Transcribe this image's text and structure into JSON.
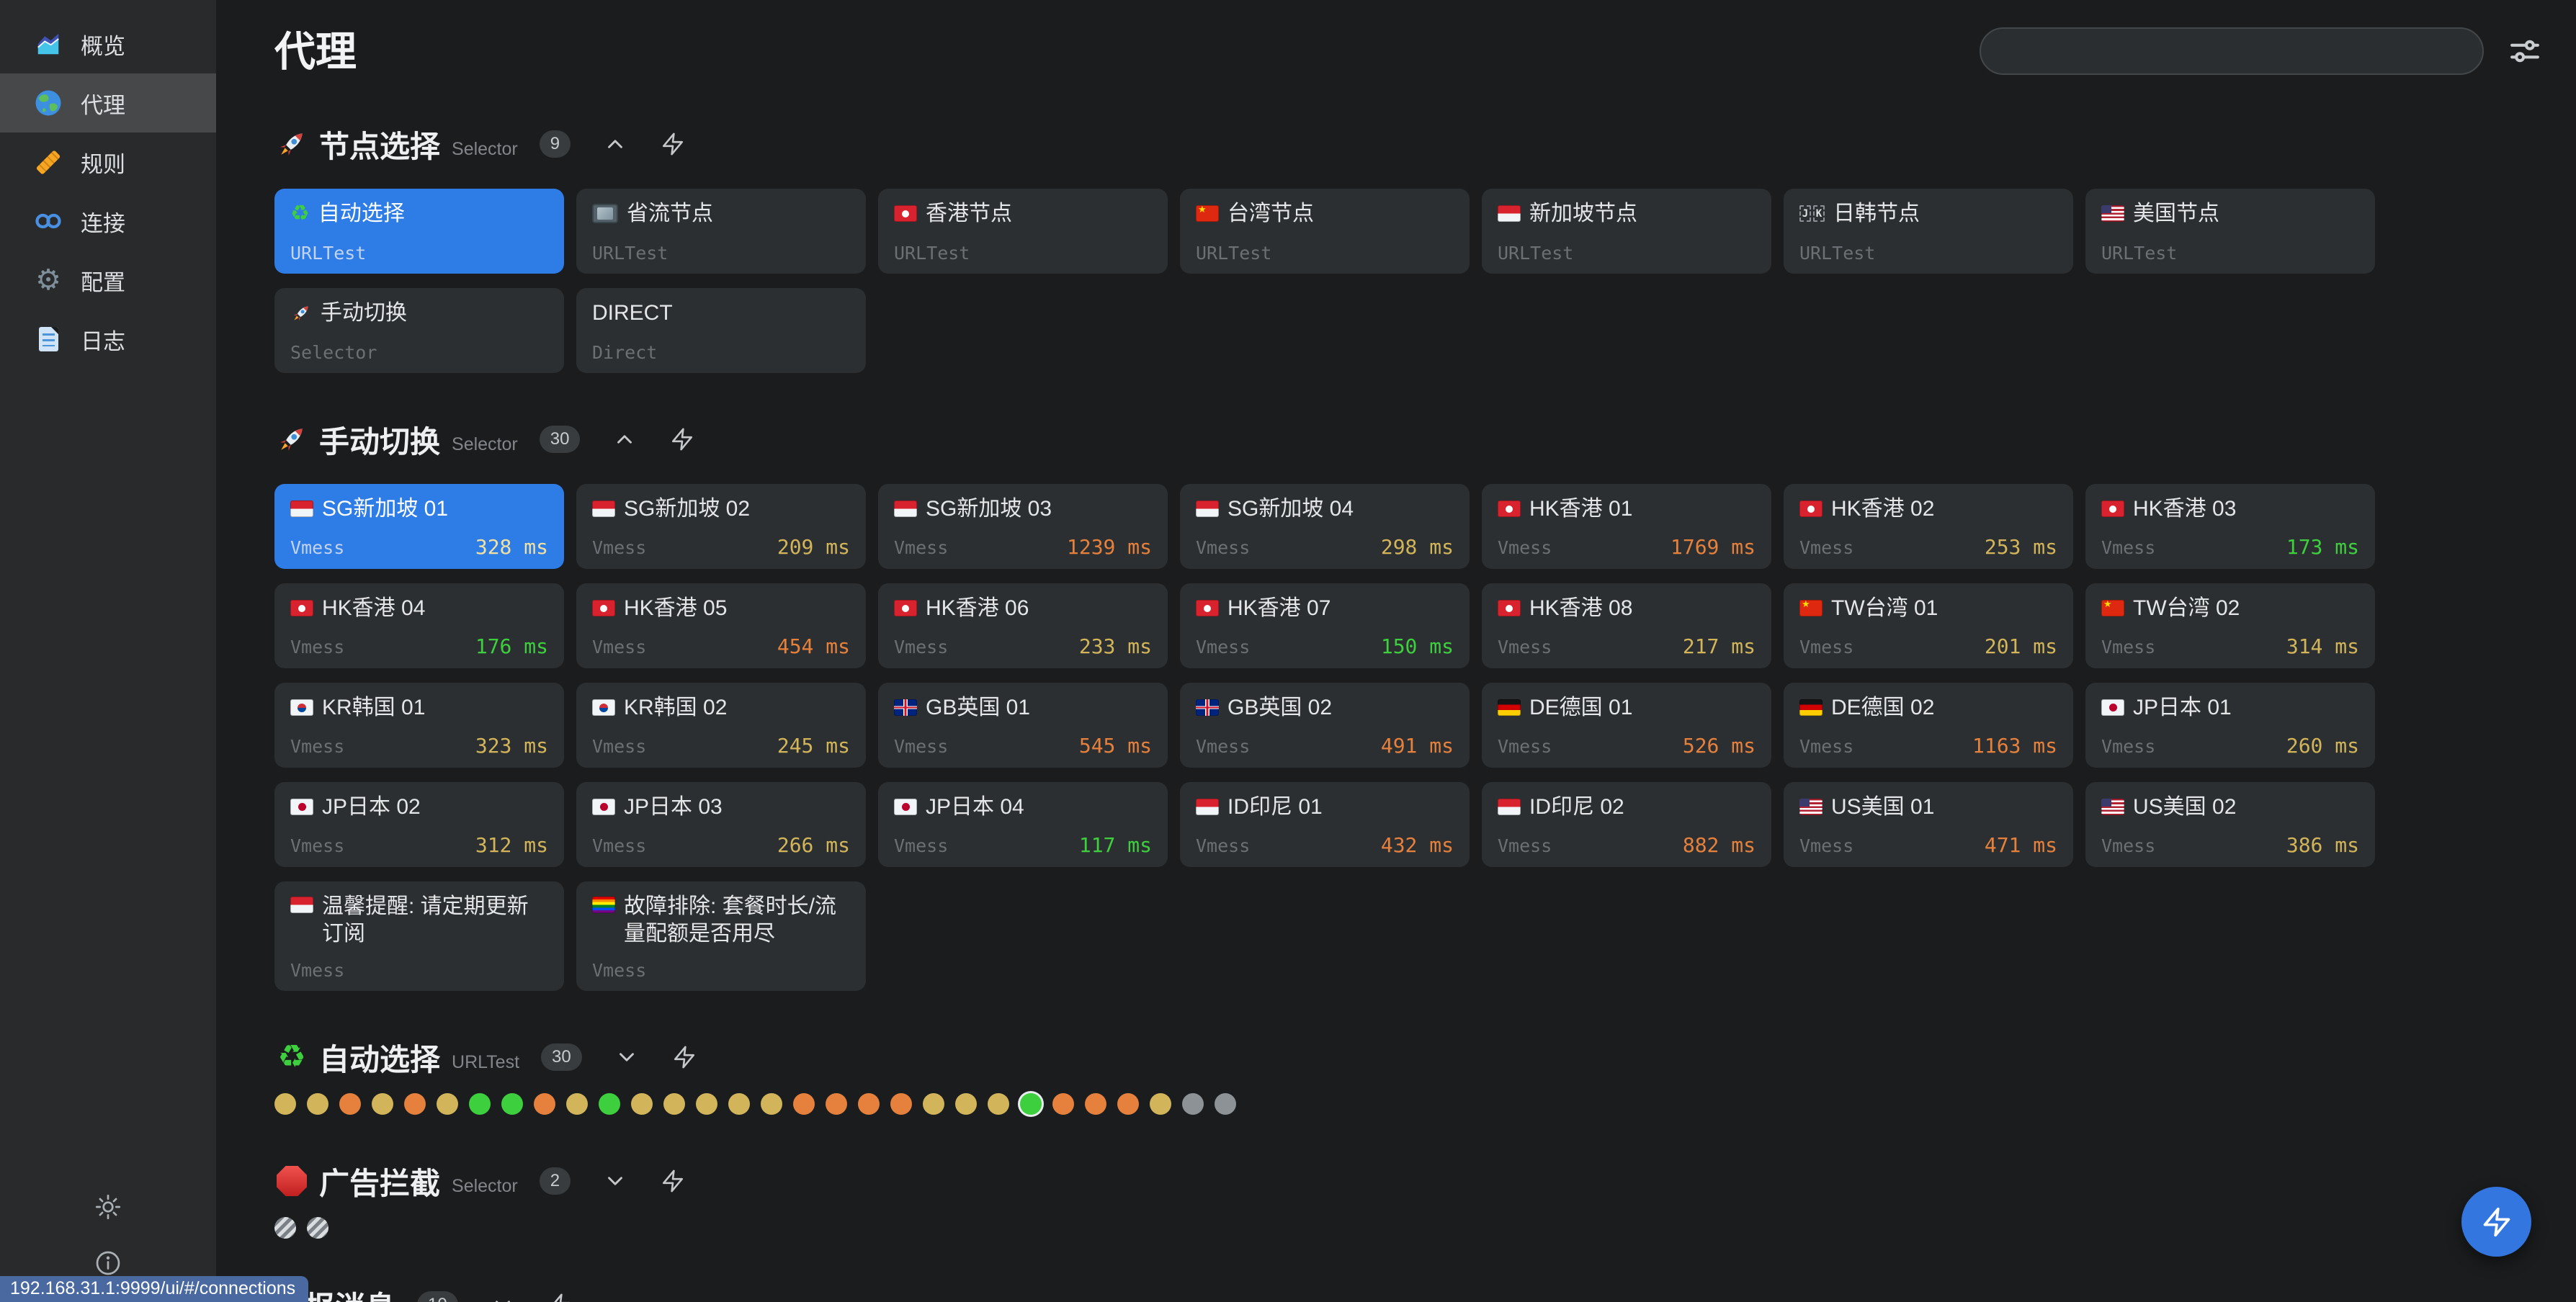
{
  "page_title": "代理",
  "colors": {
    "accent": "#2e7ce6",
    "latency_green": "#3ecf3e",
    "latency_yellow": "#d2b55a",
    "latency_orange": "#e5813c",
    "dot_gray": "#8d9296",
    "fab_blue": "#3376e0",
    "tooltip_blue": "#4a69a1"
  },
  "search": {
    "value": "",
    "placeholder": ""
  },
  "statusbar": {
    "url": "192.168.31.1:9999/ui/#/connections"
  },
  "sidebar": {
    "items": [
      {
        "key": "overview",
        "label": "概览",
        "icon": "chart-icon",
        "active": false
      },
      {
        "key": "proxies",
        "label": "代理",
        "icon": "globe-icon",
        "active": true
      },
      {
        "key": "rules",
        "label": "规则",
        "icon": "ruler-icon",
        "active": false
      },
      {
        "key": "connections",
        "label": "连接",
        "icon": "link-icon",
        "active": false
      },
      {
        "key": "config",
        "label": "配置",
        "icon": "gear-icon",
        "active": false
      },
      {
        "key": "logs",
        "label": "日志",
        "icon": "log-icon",
        "active": false
      }
    ],
    "footer": [
      {
        "key": "theme",
        "icon": "sun-icon"
      },
      {
        "key": "about",
        "icon": "info-icon"
      }
    ]
  },
  "groups": [
    {
      "key": "node-select",
      "name": "节点选择",
      "type_label": "Selector",
      "count": "9",
      "icon": "rocket",
      "expanded": true,
      "proxies": [
        {
          "name": "自动选择",
          "flag": "recycle",
          "type": "URLTest",
          "selected": true
        },
        {
          "name": "省流节点",
          "flag": "tv",
          "type": "URLTest"
        },
        {
          "name": "香港节点",
          "flag": "hk",
          "type": "URLTest"
        },
        {
          "name": "台湾节点",
          "flag": "cn",
          "type": "URLTest"
        },
        {
          "name": "新加坡节点",
          "flag": "sg",
          "type": "URLTest"
        },
        {
          "name": "日韩节点",
          "flag": "jk",
          "type": "URLTest"
        },
        {
          "name": "美国节点",
          "flag": "us",
          "type": "URLTest"
        },
        {
          "name": "手动切换",
          "flag": "rocket",
          "type": "Selector"
        },
        {
          "name": "DIRECT",
          "flag": null,
          "type": "Direct"
        }
      ]
    },
    {
      "key": "manual-switch",
      "name": "手动切换",
      "type_label": "Selector",
      "count": "30",
      "icon": "rocket",
      "expanded": true,
      "proxies": [
        {
          "name": "SG新加坡 01",
          "flag": "sg",
          "type": "Vmess",
          "latency_ms": 328,
          "selected": true
        },
        {
          "name": "SG新加坡 02",
          "flag": "sg",
          "type": "Vmess",
          "latency_ms": 209
        },
        {
          "name": "SG新加坡 03",
          "flag": "sg",
          "type": "Vmess",
          "latency_ms": 1239
        },
        {
          "name": "SG新加坡 04",
          "flag": "sg",
          "type": "Vmess",
          "latency_ms": 298
        },
        {
          "name": "HK香港 01",
          "flag": "hk",
          "type": "Vmess",
          "latency_ms": 1769
        },
        {
          "name": "HK香港 02",
          "flag": "hk",
          "type": "Vmess",
          "latency_ms": 253
        },
        {
          "name": "HK香港 03",
          "flag": "hk",
          "type": "Vmess",
          "latency_ms": 173
        },
        {
          "name": "HK香港 04",
          "flag": "hk",
          "type": "Vmess",
          "latency_ms": 176
        },
        {
          "name": "HK香港 05",
          "flag": "hk",
          "type": "Vmess",
          "latency_ms": 454
        },
        {
          "name": "HK香港 06",
          "flag": "hk",
          "type": "Vmess",
          "latency_ms": 233
        },
        {
          "name": "HK香港 07",
          "flag": "hk",
          "type": "Vmess",
          "latency_ms": 150
        },
        {
          "name": "HK香港 08",
          "flag": "hk",
          "type": "Vmess",
          "latency_ms": 217
        },
        {
          "name": "TW台湾 01",
          "flag": "cn",
          "type": "Vmess",
          "latency_ms": 201
        },
        {
          "name": "TW台湾 02",
          "flag": "cn",
          "type": "Vmess",
          "latency_ms": 314
        },
        {
          "name": "KR韩国 01",
          "flag": "kr",
          "type": "Vmess",
          "latency_ms": 323
        },
        {
          "name": "KR韩国 02",
          "flag": "kr",
          "type": "Vmess",
          "latency_ms": 245
        },
        {
          "name": "GB英国 01",
          "flag": "gb",
          "type": "Vmess",
          "latency_ms": 545
        },
        {
          "name": "GB英国 02",
          "flag": "gb",
          "type": "Vmess",
          "latency_ms": 491
        },
        {
          "name": "DE德国 01",
          "flag": "de",
          "type": "Vmess",
          "latency_ms": 526
        },
        {
          "name": "DE德国 02",
          "flag": "de",
          "type": "Vmess",
          "latency_ms": 1163
        },
        {
          "name": "JP日本 01",
          "flag": "jp",
          "type": "Vmess",
          "latency_ms": 260
        },
        {
          "name": "JP日本 02",
          "flag": "jp",
          "type": "Vmess",
          "latency_ms": 312
        },
        {
          "name": "JP日本 03",
          "flag": "jp",
          "type": "Vmess",
          "latency_ms": 266
        },
        {
          "name": "JP日本 04",
          "flag": "jp",
          "type": "Vmess",
          "latency_ms": 117
        },
        {
          "name": "ID印尼 01",
          "flag": "id",
          "type": "Vmess",
          "latency_ms": 432
        },
        {
          "name": "ID印尼 02",
          "flag": "id",
          "type": "Vmess",
          "latency_ms": 882
        },
        {
          "name": "US美国 01",
          "flag": "us",
          "type": "Vmess",
          "latency_ms": 471
        },
        {
          "name": "US美国 02",
          "flag": "us",
          "type": "Vmess",
          "latency_ms": 386
        },
        {
          "name": "温馨提醒: 请定期更新订阅",
          "flag": "sg",
          "type": "Vmess",
          "tall": true
        },
        {
          "name": "故障排除: 套餐时长/流量配额是否用尽",
          "flag": "rainbow",
          "type": "Vmess",
          "tall": true
        }
      ]
    },
    {
      "key": "auto-select",
      "name": "自动选择",
      "type_label": "URLTest",
      "count": "30",
      "icon": "recycle",
      "expanded": false,
      "dots": [
        "yellow",
        "yellow",
        "orange",
        "yellow",
        "orange",
        "yellow",
        "green",
        "green",
        "orange",
        "yellow",
        "green",
        "yellow",
        "yellow",
        "yellow",
        "yellow",
        "yellow",
        "orange",
        "orange",
        "orange",
        "orange",
        "yellow",
        "yellow",
        "yellow",
        "green",
        "orange",
        "orange",
        "orange",
        "yellow",
        "gray",
        "gray"
      ],
      "selected_dot": 23
    },
    {
      "key": "ad-block",
      "name": "广告拦截",
      "type_label": "Selector",
      "count": "2",
      "icon": "stop",
      "expanded": false,
      "dots": [
        "striped",
        "striped"
      ]
    },
    {
      "key": "telegram",
      "name": "电报消息",
      "type_label": "",
      "count": "10",
      "icon": null,
      "expanded": false,
      "dots": []
    }
  ]
}
